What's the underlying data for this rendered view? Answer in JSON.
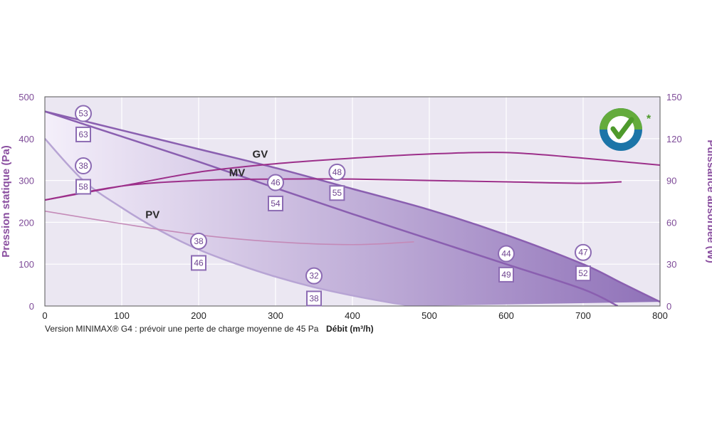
{
  "chart_data": {
    "type": "line",
    "note": "Version MINIMAX® G4 : prévoir une perte de charge moyenne de 45 Pa",
    "xlabel": "Débit (m³/h)",
    "ylabel_left": "Pression statique (Pa)",
    "ylabel_right": "Puissance absorbée (W)",
    "xlim": [
      0,
      800
    ],
    "ylim_left": [
      0,
      500
    ],
    "ylim_right": [
      0,
      150
    ],
    "x_ticks": [
      "0",
      "100",
      "200",
      "300",
      "400",
      "500",
      "600",
      "700",
      "800"
    ],
    "y_left_ticks": [
      "0",
      "100",
      "200",
      "300",
      "400",
      "500"
    ],
    "y_right_ticks": [
      "0",
      "30",
      "60",
      "90",
      "120",
      "150"
    ],
    "grid": true,
    "colors": {
      "pressure_curve": "#8a5fb0",
      "pv_pressure_curve": "#b7a4d4",
      "power_curve": "#9c2f8a",
      "pv_power_curve": "#c48ab8",
      "band_light": "#f4effa",
      "band_dark": "#8f71b8",
      "plot_bg": "#ebe7f2",
      "grid": "#ffffff",
      "axis_text": "#7e4b98",
      "marker": "#8c6bb3"
    },
    "pressure_series": [
      {
        "name": "GV",
        "axis": "left",
        "x": [
          0,
          100,
          200,
          300,
          400,
          500,
          600,
          700,
          750,
          800
        ],
        "y": [
          465,
          420,
          375,
          330,
          280,
          230,
          170,
          100,
          55,
          10
        ]
      },
      {
        "name": "MV",
        "axis": "left",
        "x": [
          0,
          100,
          200,
          300,
          400,
          500,
          600,
          700,
          745
        ],
        "y": [
          465,
          405,
          345,
          282,
          220,
          160,
          100,
          40,
          0
        ]
      },
      {
        "name": "PV",
        "axis": "left",
        "x": [
          0,
          50,
          100,
          150,
          200,
          250,
          300,
          350,
          400,
          450,
          480
        ],
        "y": [
          400,
          300,
          235,
          180,
          135,
          100,
          70,
          45,
          25,
          8,
          0
        ]
      }
    ],
    "power_series": [
      {
        "name": "GV",
        "axis": "right",
        "x": [
          0,
          100,
          200,
          300,
          400,
          500,
          600,
          700,
          800
        ],
        "y": [
          76,
          86,
          96,
          102,
          106,
          109,
          110,
          106,
          101
        ]
      },
      {
        "name": "MV",
        "axis": "right",
        "x": [
          0,
          100,
          200,
          300,
          400,
          500,
          600,
          700,
          750
        ],
        "y": [
          76,
          86,
          90,
          91,
          91,
          90,
          89,
          88,
          89
        ]
      },
      {
        "name": "PV",
        "axis": "right",
        "x": [
          0,
          100,
          200,
          300,
          400,
          480
        ],
        "y": [
          68,
          59,
          51,
          46,
          44,
          46
        ]
      }
    ],
    "curve_labels": [
      {
        "text": "GV",
        "x": 280,
        "y": 355
      },
      {
        "text": "MV",
        "x": 250,
        "y": 310
      },
      {
        "text": "PV",
        "x": 140,
        "y": 210
      }
    ],
    "markers": [
      {
        "shape": "circle",
        "value": "53",
        "x": 50,
        "y": 460
      },
      {
        "shape": "square",
        "value": "63",
        "x": 50,
        "y": 410
      },
      {
        "shape": "circle",
        "value": "38",
        "x": 50,
        "y": 335
      },
      {
        "shape": "square",
        "value": "58",
        "x": 50,
        "y": 285
      },
      {
        "shape": "circle",
        "value": "46",
        "x": 300,
        "y": 295
      },
      {
        "shape": "square",
        "value": "54",
        "x": 300,
        "y": 245
      },
      {
        "shape": "circle",
        "value": "48",
        "x": 380,
        "y": 320
      },
      {
        "shape": "square",
        "value": "55",
        "x": 380,
        "y": 270
      },
      {
        "shape": "circle",
        "value": "38",
        "x": 200,
        "y": 155
      },
      {
        "shape": "square",
        "value": "46",
        "x": 200,
        "y": 103
      },
      {
        "shape": "circle",
        "value": "32",
        "x": 350,
        "y": 72
      },
      {
        "shape": "square",
        "value": "38",
        "x": 350,
        "y": 18
      },
      {
        "shape": "circle",
        "value": "44",
        "x": 600,
        "y": 125
      },
      {
        "shape": "square",
        "value": "49",
        "x": 600,
        "y": 75
      },
      {
        "shape": "circle",
        "value": "47",
        "x": 700,
        "y": 128
      },
      {
        "shape": "square",
        "value": "52",
        "x": 700,
        "y": 78
      }
    ],
    "logo": {
      "icon": "checkmark-badge-icon",
      "asterisk": "*"
    }
  }
}
